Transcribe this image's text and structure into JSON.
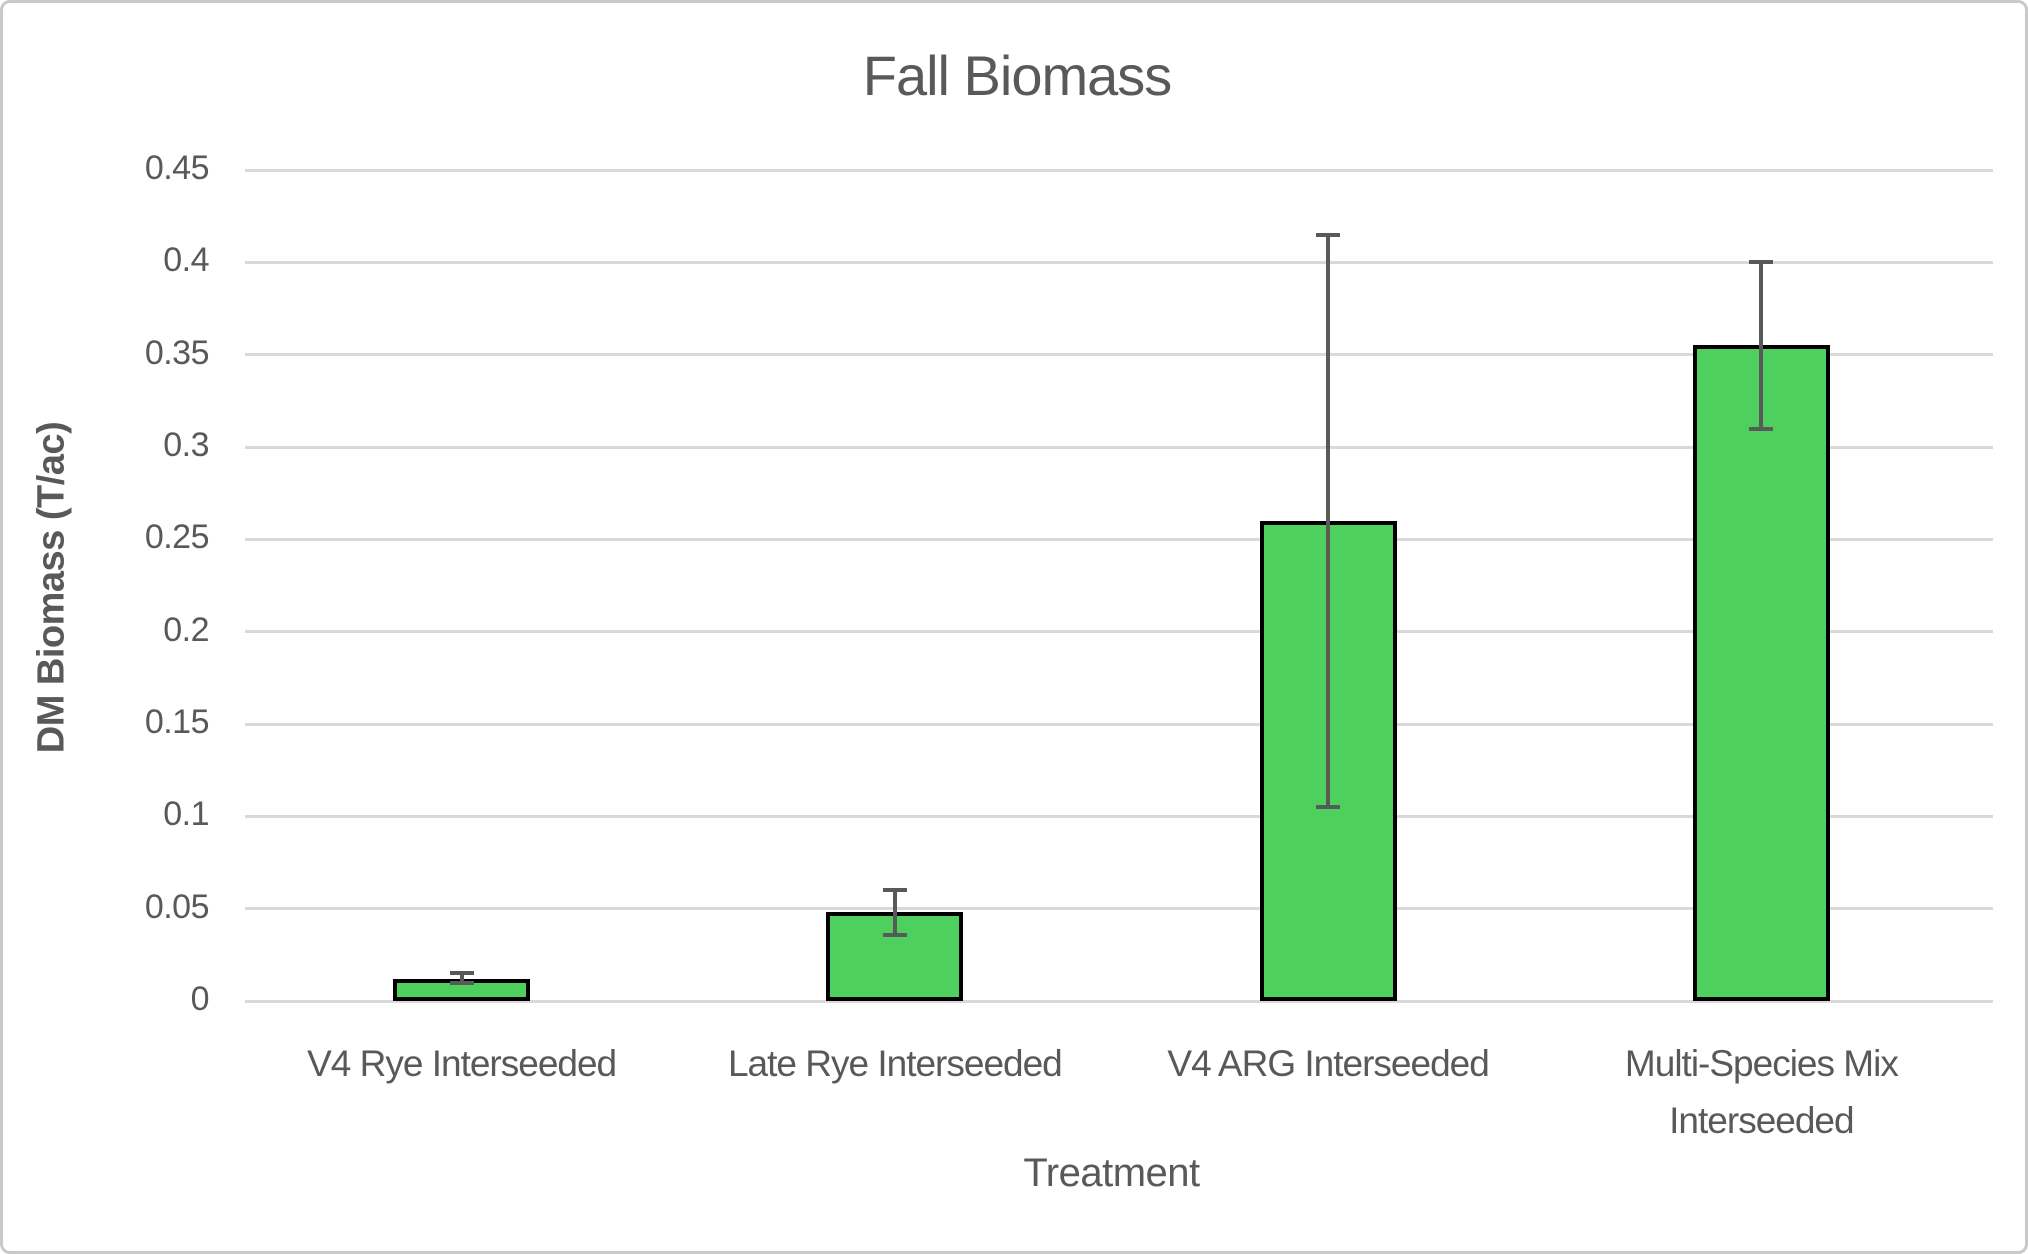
{
  "chart_data": {
    "type": "bar",
    "title": "Fall Biomass",
    "xlabel": "Treatment",
    "ylabel": "DM Biomass (T/ac)",
    "categories": [
      "V4 Rye Interseeded",
      "Late Rye Interseeded",
      "V4 ARG Interseeded",
      "Multi-Species Mix\nInterseeded"
    ],
    "values": [
      0.012,
      0.048,
      0.26,
      0.355
    ],
    "error_bars": {
      "low": [
        0.01,
        0.036,
        0.105,
        0.31
      ],
      "high": [
        0.015,
        0.06,
        0.415,
        0.4
      ]
    },
    "ylim": [
      0,
      0.45
    ],
    "ytick_step": 0.05,
    "yticks": [
      "0",
      "0.05",
      "0.1",
      "0.15",
      "0.2",
      "0.25",
      "0.3",
      "0.35",
      "0.4",
      "0.45"
    ],
    "grid": true,
    "legend_position": "none",
    "colors": {
      "bar_fill": "#4DD05E",
      "bar_border": "#000000",
      "error_bar": "#595959",
      "gridline": "#D9D9D9",
      "text": "#595959",
      "frame_border": "#C9C9C9",
      "background": "#FFFFFF"
    }
  }
}
